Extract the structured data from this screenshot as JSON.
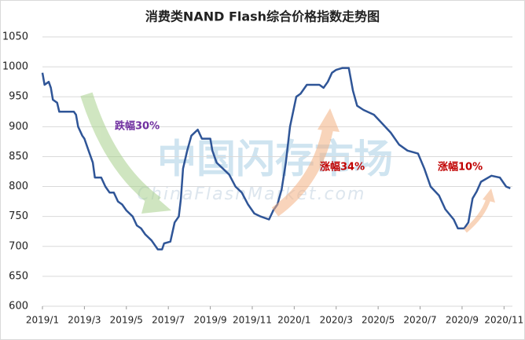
{
  "chart_data": {
    "type": "line",
    "title": "消费类NAND Flash综合价格指数走势图",
    "watermark": "中国闪存市场",
    "watermark_sub": "ChinaFlashMarket.com",
    "annotations": [
      {
        "text": "跌幅30%",
        "color": "#7030a0"
      },
      {
        "text": "涨幅34%",
        "color": "#c00000"
      },
      {
        "text": "涨幅10%",
        "color": "#c00000"
      }
    ],
    "color": "#2f5597",
    "x": [
      0,
      0.1,
      0.3,
      0.4,
      0.5,
      0.7,
      0.8,
      1.0,
      1.5,
      1.6,
      1.7,
      1.9,
      2.0,
      2.2,
      2.4,
      2.5,
      2.8,
      3.0,
      3.2,
      3.4,
      3.6,
      3.8,
      4.0,
      4.3,
      4.5,
      4.7,
      4.9,
      5.2,
      5.5,
      5.7,
      5.8,
      6.1,
      6.3,
      6.5,
      6.6,
      6.7,
      6.9,
      7.1,
      7.4,
      7.6,
      8.0,
      8.1,
      8.3,
      8.6,
      8.9,
      9.2,
      9.5,
      9.8,
      10.1,
      10.4,
      10.8,
      11.0,
      11.2,
      11.4,
      11.6,
      11.8,
      12.1,
      12.3,
      12.6,
      13.2,
      13.4,
      13.6,
      13.8,
      14.0,
      14.3,
      14.6,
      14.8,
      15.0,
      15.3,
      15.8,
      16.2,
      16.6,
      17.0,
      17.4,
      17.9,
      18.2,
      18.5,
      18.9,
      19.2,
      19.6,
      19.8,
      20.1,
      20.3,
      20.5,
      20.7,
      20.9,
      21.4,
      21.8,
      22.1,
      22.3
    ],
    "values": [
      990,
      970,
      975,
      965,
      945,
      940,
      925,
      925,
      925,
      920,
      900,
      885,
      880,
      860,
      840,
      815,
      815,
      800,
      790,
      790,
      775,
      770,
      760,
      750,
      735,
      730,
      720,
      710,
      695,
      695,
      705,
      708,
      740,
      750,
      780,
      830,
      860,
      885,
      895,
      880,
      880,
      860,
      840,
      830,
      820,
      800,
      790,
      770,
      755,
      750,
      745,
      760,
      770,
      795,
      840,
      900,
      950,
      955,
      970,
      970,
      965,
      975,
      990,
      995,
      998,
      998,
      960,
      935,
      928,
      920,
      905,
      890,
      870,
      860,
      855,
      830,
      800,
      785,
      762,
      745,
      730,
      730,
      740,
      780,
      792,
      808,
      818,
      815,
      800,
      797
    ],
    "xlim": [
      0,
      22.4
    ],
    "xticks": [
      {
        "value": 0,
        "label": "2019/1"
      },
      {
        "value": 2,
        "label": "2019/3"
      },
      {
        "value": 4,
        "label": "2019/5"
      },
      {
        "value": 6,
        "label": "2019/7"
      },
      {
        "value": 8,
        "label": "2019/9"
      },
      {
        "value": 10,
        "label": "2019/11"
      },
      {
        "value": 12,
        "label": "2020/1"
      },
      {
        "value": 14,
        "label": "2020/3"
      },
      {
        "value": 16,
        "label": "2020/5"
      },
      {
        "value": 18,
        "label": "2020/7"
      },
      {
        "value": 20,
        "label": "2020/9"
      },
      {
        "value": 22,
        "label": "2020/11"
      }
    ],
    "ylim": [
      600,
      1050
    ],
    "yticks": [
      600,
      650,
      700,
      750,
      800,
      850,
      900,
      950,
      1000,
      1050
    ],
    "grid": true
  }
}
